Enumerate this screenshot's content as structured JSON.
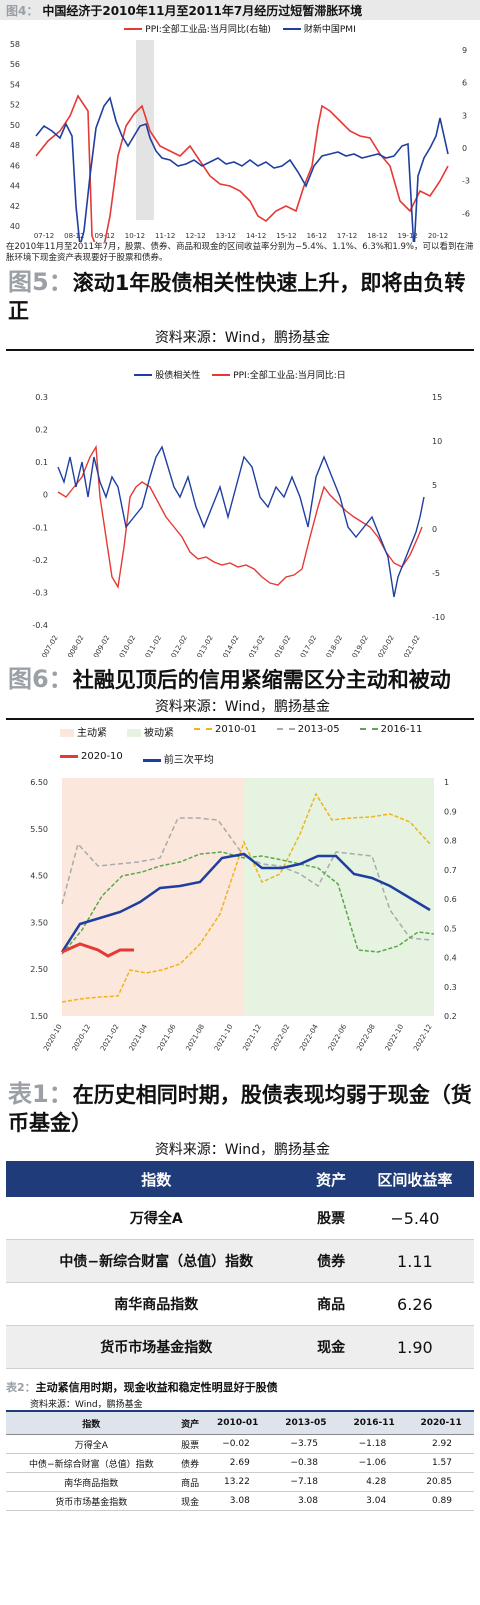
{
  "fig4": {
    "num": "图4：",
    "title": "中国经济于2010年11月至2011年7月经历过短暂滞胀环境",
    "legend": [
      "PPI:全部工业品:当月同比(右轴)",
      "财新中国PMI"
    ],
    "caption": "在2010年11月至2011年7月，股票、债券、商品和现金的区间收益率分别为−5.4%、1.1%、6.3%和1.9%，可以看到在滞胀环境下现金资产表现要好于股票和债券。",
    "x_ticks": [
      "07-12",
      "08-12",
      "09-12",
      "10-12",
      "11-12",
      "12-12",
      "13-12",
      "14-12",
      "15-12",
      "16-12",
      "17-12",
      "18-12",
      "19-12",
      "20-12"
    ],
    "y_left": [
      "58",
      "56",
      "54",
      "52",
      "50",
      "48",
      "46",
      "44",
      "42",
      "40"
    ],
    "y_right": [
      "9",
      "6",
      "3",
      "0",
      "-3",
      "-6",
      "-9"
    ]
  },
  "fig5": {
    "num": "图5：",
    "title": "滚动1年股债相关性快速上升，即将由负转正",
    "source": "资料来源：Wind，鹏扬基金",
    "legend": [
      "股债相关性",
      "PPI:全部工业品:当月同比:日"
    ],
    "x_ticks": [
      "2007-02",
      "2008-02",
      "2009-02",
      "2010-02",
      "2011-02",
      "2012-02",
      "2013-02",
      "2014-02",
      "2015-02",
      "2016-02",
      "2017-02",
      "2018-02",
      "2019-02",
      "2020-02",
      "2021-02"
    ],
    "y_left": [
      "0.3",
      "0.2",
      "0.1",
      "0",
      "-0.1",
      "-0.2",
      "-0.3",
      "-0.4"
    ],
    "y_right": [
      "15",
      "10",
      "5",
      "0",
      "-5",
      "-10"
    ]
  },
  "fig6": {
    "num": "图6：",
    "title": "社融见顶后的信用紧缩需区分主动和被动",
    "source": "资料来源：Wind，鹏扬基金",
    "legend": [
      "主动紧",
      "被动紧",
      "2010-01",
      "2013-05",
      "2016-11",
      "2020-10",
      "前三次平均"
    ],
    "x_ticks": [
      "2020-10",
      "2020-12",
      "2021-02",
      "2021-04",
      "2021-06",
      "2021-08",
      "2021-10",
      "2021-12",
      "2022-02",
      "2022-04",
      "2022-06",
      "2022-08",
      "2022-10",
      "2022-12"
    ],
    "y_left": [
      "6.50",
      "5.50",
      "4.50",
      "3.50",
      "2.50",
      "1.50"
    ],
    "y_right": [
      "1",
      "0.9",
      "0.8",
      "0.7",
      "0.6",
      "0.5",
      "0.4",
      "0.3",
      "0.2"
    ]
  },
  "table1": {
    "num": "表1：",
    "title": "在历史相同时期，股债表现均弱于现金（货币基金）",
    "source": "资料来源：Wind，鹏扬基金",
    "headers": [
      "指数",
      "资产",
      "区间收益率"
    ],
    "rows": [
      [
        "万得全A",
        "股票",
        "−5.40"
      ],
      [
        "中债−新综合财富（总值）指数",
        "债券",
        "1.11"
      ],
      [
        "南华商品指数",
        "商品",
        "6.26"
      ],
      [
        "货币市场基金指数",
        "现金",
        "1.90"
      ]
    ]
  },
  "table2": {
    "num": "表2：",
    "title": "主动紧信用时期，现金收益和稳定性明显好于股债",
    "source": "资料来源：Wind，鹏扬基金",
    "headers": [
      "指数",
      "资产",
      "2010-01",
      "2013-05",
      "2016-11",
      "2020-11"
    ],
    "rows": [
      [
        "万得全A",
        "股票",
        "−0.02",
        "−3.75",
        "−1.18",
        "2.92"
      ],
      [
        "中债−新综合财富（总值）指数",
        "债券",
        "2.69",
        "−0.38",
        "−1.06",
        "1.57"
      ],
      [
        "南华商品指数",
        "商品",
        "13.22",
        "−7.18",
        "4.28",
        "20.85"
      ],
      [
        "货币市场基金指数",
        "现金",
        "3.08",
        "3.08",
        "3.04",
        "0.89"
      ]
    ]
  },
  "colors": {
    "blue": "#1f3fa0",
    "red": "#e53935",
    "orange": "#f2b21b",
    "gray": "#aaaaaa",
    "green": "#5aa84a",
    "navy": "#1f3b7a",
    "peach": "#fbe7dc",
    "mint": "#e5f3e0"
  }
}
